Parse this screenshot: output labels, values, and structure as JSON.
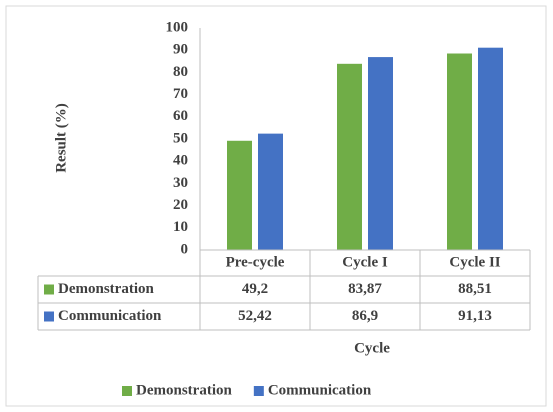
{
  "chart_data": {
    "type": "bar",
    "y_label": "Result (%)",
    "x_label": "Cycle",
    "categories": [
      "Pre-cycle",
      "Cycle I",
      "Cycle II"
    ],
    "series": [
      {
        "name": "Demonstration",
        "color": "#70ad47",
        "values": [
          49.2,
          83.87,
          88.51
        ],
        "value_labels": [
          "49,2",
          "83,87",
          "88,51"
        ]
      },
      {
        "name": "Communication",
        "color": "#4472c4",
        "values": [
          52.42,
          86.9,
          91.13
        ],
        "value_labels": [
          "52,42",
          "86,9",
          "91,13"
        ]
      }
    ],
    "ylim": [
      0,
      100
    ],
    "yticks": [
      0,
      10,
      20,
      30,
      40,
      50,
      60,
      70,
      80,
      90,
      100
    ],
    "grid": false,
    "legend": "bottom"
  }
}
